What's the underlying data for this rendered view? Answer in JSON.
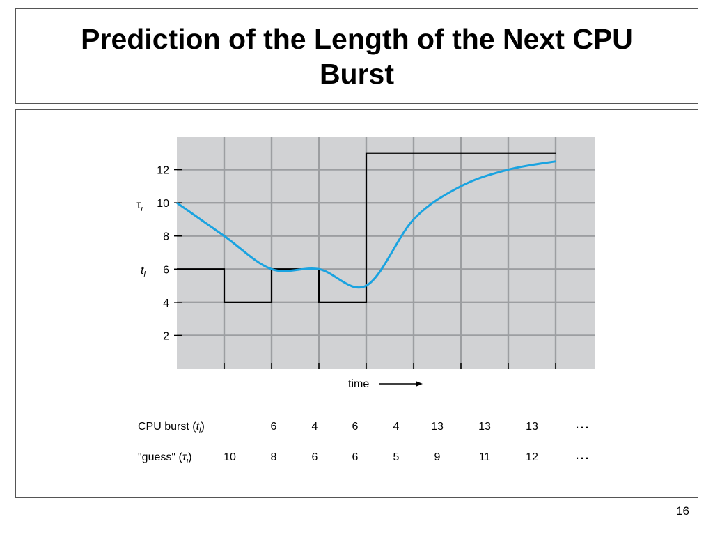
{
  "slide": {
    "title": "Prediction of the Length of the Next CPU Burst",
    "number": "16"
  },
  "chart_data": {
    "type": "line",
    "xlabel": "time",
    "y_ticks": [
      "2",
      "4",
      "6",
      "8",
      "10",
      "12"
    ],
    "ylim": [
      0,
      14
    ],
    "grid": true,
    "series": [
      {
        "name": "t",
        "name_sub": "i",
        "style": "step",
        "color": "#000000",
        "values": [
          6,
          4,
          6,
          4,
          13,
          13,
          13,
          13
        ]
      },
      {
        "name": "τ",
        "name_sub": "i",
        "style": "smooth",
        "color": "#1AA3E0",
        "values": [
          10,
          8,
          6,
          6,
          5,
          9,
          11,
          12,
          12.5
        ]
      }
    ],
    "table": {
      "rows": [
        {
          "label_pre": "CPU burst (",
          "label_var": "t",
          "label_sub": "i",
          "label_post": ")",
          "values": [
            "",
            "6",
            "4",
            "6",
            "4",
            "13",
            "13",
            "13"
          ],
          "ellipsis": "…"
        },
        {
          "label_pre": "\"guess\" (",
          "label_var": "τ",
          "label_sub": "i",
          "label_post": ")",
          "values": [
            "10",
            "8",
            "6",
            "6",
            "5",
            "9",
            "11",
            "12"
          ],
          "ellipsis": "…"
        }
      ]
    }
  }
}
